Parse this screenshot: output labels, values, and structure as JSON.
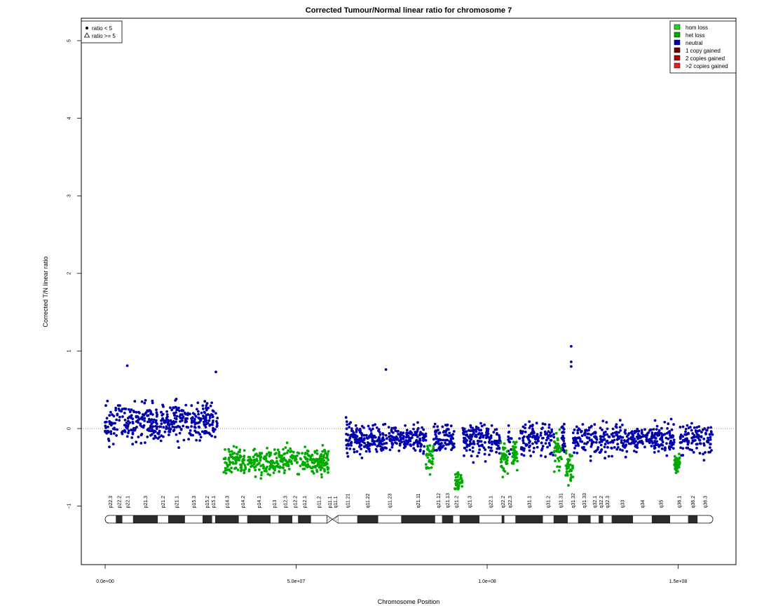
{
  "chart_data": {
    "type": "scatter",
    "title": "Corrected Tumour/Normal linear ratio for chromosome  7",
    "xlabel": "Chromosome Position",
    "ylabel": "Corrected T/N linear ratio",
    "xlim": [
      -5500000,
      165000000
    ],
    "ylim": [
      -1.8,
      5.3
    ],
    "x_ticks": [
      0,
      50000000,
      100000000,
      150000000
    ],
    "x_tick_labels": [
      "0.0e+00",
      "5.0e+07",
      "1.0e+08",
      "1.5e+08"
    ],
    "y_ticks": [
      -1,
      0,
      1,
      2,
      3,
      4,
      5
    ],
    "y_tick_labels": [
      "−1",
      "0",
      "1",
      "2",
      "3",
      "4",
      "5"
    ],
    "reference_line_y": 0,
    "grid": false,
    "legend_shape": {
      "placement": "top-left",
      "entries": [
        {
          "symbol": "dot",
          "label": "ratio < 5"
        },
        {
          "symbol": "triangle",
          "label": "ratio >= 5"
        }
      ]
    },
    "legend_state": {
      "placement": "top-right",
      "entries": [
        {
          "label": "hom loss",
          "color": "#1fd61f"
        },
        {
          "label": "het loss",
          "color": "#00aa00"
        },
        {
          "label": "neutral",
          "color": "#0000aa"
        },
        {
          "label": "1 copy gained",
          "color": "#6b0000"
        },
        {
          "label": "2 copies gained",
          "color": "#aa0000"
        },
        {
          "label": ">2 copies gained",
          "color": "#dd2222"
        }
      ]
    },
    "segments": [
      {
        "state": "neutral",
        "x_start": 0,
        "x_end": 29500000,
        "mean": 0.08,
        "spread": 0.16
      },
      {
        "state": "het loss",
        "x_start": 31000000,
        "x_end": 58500000,
        "mean": -0.42,
        "spread": 0.12
      },
      {
        "state": "neutral",
        "x_start": 63000000,
        "x_end": 159000000,
        "mean": -0.13,
        "spread": 0.14
      },
      {
        "state": "het loss",
        "x_start": 84000000,
        "x_end": 86000000,
        "mean": -0.38,
        "spread": 0.12
      },
      {
        "state": "het loss",
        "x_start": 91500000,
        "x_end": 93500000,
        "mean": -0.7,
        "spread": 0.1
      },
      {
        "state": "het loss",
        "x_start": 103500000,
        "x_end": 105500000,
        "mean": -0.38,
        "spread": 0.12
      },
      {
        "state": "het loss",
        "x_start": 106500000,
        "x_end": 108000000,
        "mean": -0.35,
        "spread": 0.12
      },
      {
        "state": "het loss",
        "x_start": 117500000,
        "x_end": 119500000,
        "mean": -0.3,
        "spread": 0.14
      },
      {
        "state": "het loss",
        "x_start": 120500000,
        "x_end": 122500000,
        "mean": -0.5,
        "spread": 0.15
      },
      {
        "state": "het loss",
        "x_start": 149000000,
        "x_end": 150500000,
        "mean": -0.45,
        "spread": 0.08
      }
    ],
    "notable_points": [
      {
        "x": 122000000,
        "y": 1.06
      },
      {
        "x": 122000000,
        "y": 0.86
      },
      {
        "x": 122000000,
        "y": 0.8
      },
      {
        "x": 73500000,
        "y": 0.76
      },
      {
        "x": 29000000,
        "y": 0.73
      },
      {
        "x": 5800000,
        "y": 0.81
      }
    ],
    "ideogram": {
      "y": -1.17,
      "centromere": 59500000,
      "bands": [
        {
          "name": "p22.3",
          "start": 0,
          "end": 2800000,
          "stain": "gneg"
        },
        {
          "name": "p22.2",
          "start": 2800000,
          "end": 4500000,
          "stain": "gpos"
        },
        {
          "name": "p22.1",
          "start": 4500000,
          "end": 7300000,
          "stain": "gneg"
        },
        {
          "name": "p21.3",
          "start": 7300000,
          "end": 13800000,
          "stain": "gpos"
        },
        {
          "name": "p21.2",
          "start": 13800000,
          "end": 16500000,
          "stain": "gneg"
        },
        {
          "name": "p21.1",
          "start": 16500000,
          "end": 20900000,
          "stain": "gpos"
        },
        {
          "name": "p15.3",
          "start": 20900000,
          "end": 25500000,
          "stain": "gneg"
        },
        {
          "name": "p15.2",
          "start": 25500000,
          "end": 28000000,
          "stain": "gpos"
        },
        {
          "name": "p15.1",
          "start": 28000000,
          "end": 28800000,
          "stain": "gneg"
        },
        {
          "name": "p14.3",
          "start": 28800000,
          "end": 35000000,
          "stain": "gpos"
        },
        {
          "name": "p14.2",
          "start": 35000000,
          "end": 37200000,
          "stain": "gneg"
        },
        {
          "name": "p14.1",
          "start": 37200000,
          "end": 43300000,
          "stain": "gpos"
        },
        {
          "name": "p13",
          "start": 43300000,
          "end": 45400000,
          "stain": "gneg"
        },
        {
          "name": "p12.3",
          "start": 45400000,
          "end": 49000000,
          "stain": "gpos"
        },
        {
          "name": "p12.2",
          "start": 49000000,
          "end": 50500000,
          "stain": "gneg"
        },
        {
          "name": "p12.1",
          "start": 50500000,
          "end": 53900000,
          "stain": "gpos"
        },
        {
          "name": "p11.2",
          "start": 53900000,
          "end": 58100000,
          "stain": "gneg"
        },
        {
          "name": "p11.1",
          "start": 58100000,
          "end": 59500000,
          "stain": "acen"
        },
        {
          "name": "q11.1",
          "start": 59500000,
          "end": 61000000,
          "stain": "acen"
        },
        {
          "name": "q11.21",
          "start": 61000000,
          "end": 66000000,
          "stain": "gneg"
        },
        {
          "name": "q11.22",
          "start": 66000000,
          "end": 71500000,
          "stain": "gpos"
        },
        {
          "name": "q11.23",
          "start": 71500000,
          "end": 77500000,
          "stain": "gneg"
        },
        {
          "name": "q21.11",
          "start": 77500000,
          "end": 86400000,
          "stain": "gpos"
        },
        {
          "name": "q21.12",
          "start": 86400000,
          "end": 88200000,
          "stain": "gneg"
        },
        {
          "name": "q21.13",
          "start": 88200000,
          "end": 91100000,
          "stain": "gpos"
        },
        {
          "name": "q21.2",
          "start": 91100000,
          "end": 92800000,
          "stain": "gneg"
        },
        {
          "name": "q21.3",
          "start": 92800000,
          "end": 98000000,
          "stain": "gpos"
        },
        {
          "name": "q22.1",
          "start": 98000000,
          "end": 103800000,
          "stain": "gneg"
        },
        {
          "name": "q22.2",
          "start": 103800000,
          "end": 104500000,
          "stain": "gpos"
        },
        {
          "name": "q22.3",
          "start": 104500000,
          "end": 107400000,
          "stain": "gneg"
        },
        {
          "name": "q31.1",
          "start": 107400000,
          "end": 114600000,
          "stain": "gpos"
        },
        {
          "name": "q31.2",
          "start": 114600000,
          "end": 117400000,
          "stain": "gneg"
        },
        {
          "name": "q31.31",
          "start": 117400000,
          "end": 121100000,
          "stain": "gpos"
        },
        {
          "name": "q31.32",
          "start": 121100000,
          "end": 123800000,
          "stain": "gneg"
        },
        {
          "name": "q31.33",
          "start": 123800000,
          "end": 127100000,
          "stain": "gpos"
        },
        {
          "name": "q32.1",
          "start": 127100000,
          "end": 129200000,
          "stain": "gneg"
        },
        {
          "name": "q32.2",
          "start": 129200000,
          "end": 130400000,
          "stain": "gpos"
        },
        {
          "name": "q32.3",
          "start": 130400000,
          "end": 132600000,
          "stain": "gneg"
        },
        {
          "name": "q33",
          "start": 132600000,
          "end": 138200000,
          "stain": "gpos"
        },
        {
          "name": "q34",
          "start": 138200000,
          "end": 143100000,
          "stain": "gneg"
        },
        {
          "name": "q35",
          "start": 143100000,
          "end": 147900000,
          "stain": "gpos"
        },
        {
          "name": "q36.1",
          "start": 147900000,
          "end": 152600000,
          "stain": "gneg"
        },
        {
          "name": "q36.2",
          "start": 152600000,
          "end": 155100000,
          "stain": "gpos"
        },
        {
          "name": "q36.3",
          "start": 155100000,
          "end": 159100000,
          "stain": "gneg"
        }
      ]
    }
  }
}
